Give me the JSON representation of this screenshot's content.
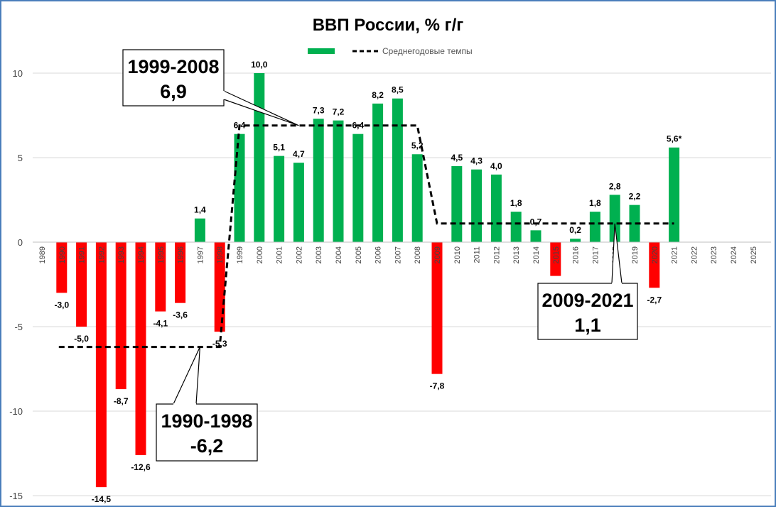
{
  "chart_data": {
    "type": "bar",
    "title": "ВВП России, % г/г",
    "xlabel": "",
    "ylabel": "",
    "ylim": [
      -15,
      10
    ],
    "yticks": [
      10,
      5,
      0,
      -5,
      -10,
      -15
    ],
    "grid": true,
    "legend_position": "top",
    "categories": [
      "1989",
      "1990",
      "1991",
      "1992",
      "1993",
      "1994",
      "1995",
      "1996",
      "1997",
      "1998",
      "1999",
      "2000",
      "2001",
      "2002",
      "2003",
      "2004",
      "2005",
      "2006",
      "2007",
      "2008",
      "2009",
      "2010",
      "2011",
      "2012",
      "2013",
      "2014",
      "2015",
      "2016",
      "2017",
      "2018",
      "2019",
      "2020",
      "2021",
      "2022",
      "2023",
      "2024",
      "2025"
    ],
    "values": [
      null,
      -3.0,
      -5.0,
      -14.5,
      -8.7,
      -12.6,
      -4.1,
      -3.6,
      1.4,
      -5.3,
      6.4,
      10.0,
      5.1,
      4.7,
      7.3,
      7.2,
      6.4,
      8.2,
      8.5,
      5.2,
      -7.8,
      4.5,
      4.3,
      4.0,
      1.8,
      0.7,
      -2.0,
      0.2,
      1.8,
      2.8,
      2.2,
      -2.7,
      5.6,
      null,
      null,
      null,
      null
    ],
    "data_labels": [
      "",
      "-3,0",
      "-5,0",
      "-14,5",
      "-8,7",
      "-12,6",
      "-4,1",
      "-3,6",
      "1,4",
      "-5,3",
      "6,4",
      "10,0",
      "5,1",
      "4,7",
      "7,3",
      "7,2",
      "6,4",
      "8,2",
      "8,5",
      "5,2",
      "-7,8",
      "4,5",
      "4,3",
      "4,0",
      "1,8",
      "0,7",
      "",
      "0,2",
      "1,8",
      "2,8",
      "2,2",
      "-2,7",
      "5,6*",
      "",
      "",
      "",
      ""
    ],
    "series": [
      {
        "name": "",
        "type": "bar",
        "color_positive": "#00b050",
        "color_negative": "#ff0000"
      },
      {
        "name": "Среднегодовые темпы",
        "type": "line",
        "color": "#000000",
        "segments": [
          {
            "from": "1990",
            "to": "1998",
            "value": -6.2
          },
          {
            "from": "1999",
            "to": "2008",
            "value": 6.9
          },
          {
            "from": "2009",
            "to": "2021",
            "value": 1.1
          }
        ]
      }
    ],
    "annotations": [
      {
        "period": "1990-1998",
        "value": "-6,2"
      },
      {
        "period": "1999-2008",
        "value": "6,9"
      },
      {
        "period": "2009-2021",
        "value": "1,1"
      }
    ]
  }
}
